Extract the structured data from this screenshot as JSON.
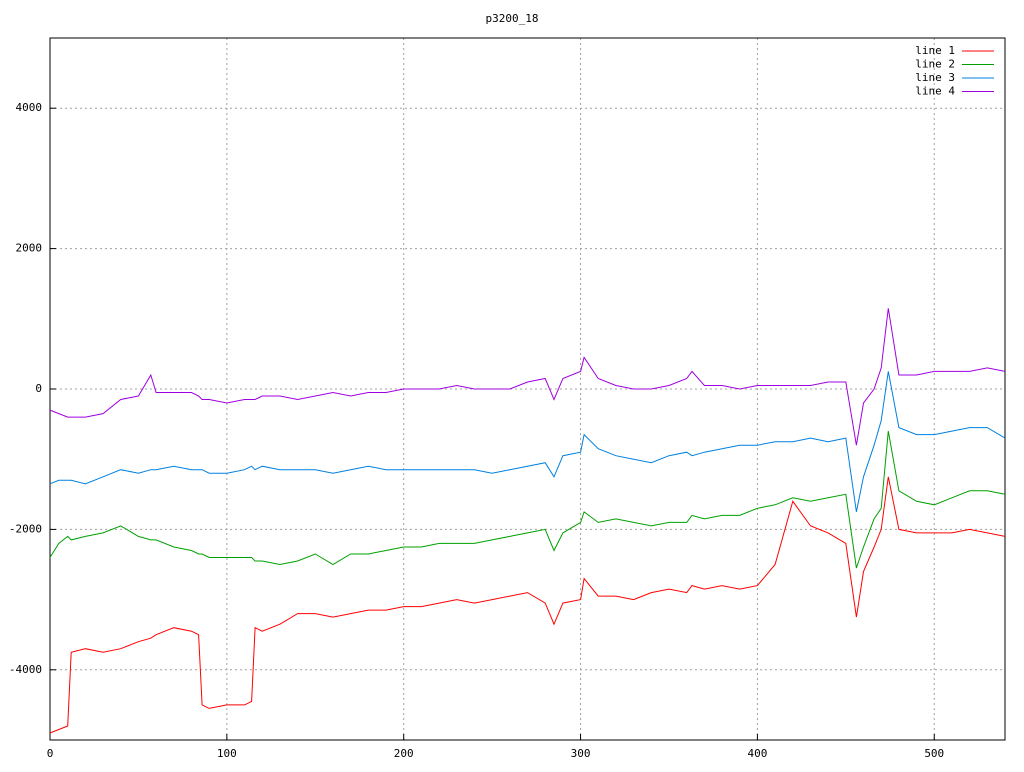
{
  "chart_data": {
    "type": "line",
    "title": "p3200_18",
    "x": [
      0,
      5,
      10,
      12,
      20,
      30,
      40,
      50,
      57,
      60,
      70,
      80,
      84,
      86,
      90,
      100,
      110,
      114,
      116,
      120,
      130,
      140,
      150,
      160,
      170,
      180,
      190,
      200,
      210,
      220,
      230,
      240,
      250,
      260,
      270,
      280,
      285,
      290,
      300,
      302,
      310,
      320,
      330,
      340,
      350,
      360,
      363,
      370,
      380,
      390,
      400,
      410,
      420,
      430,
      440,
      450,
      456,
      460,
      466,
      470,
      474,
      480,
      490,
      500,
      510,
      520,
      530,
      540
    ],
    "series": [
      {
        "name": "line 1",
        "color": "#ff0000",
        "values": [
          -4900,
          -4850,
          -4800,
          -3750,
          -3700,
          -3750,
          -3700,
          -3600,
          -3550,
          -3500,
          -3400,
          -3450,
          -3500,
          -4500,
          -4550,
          -4500,
          -4500,
          -4450,
          -3400,
          -3450,
          -3350,
          -3200,
          -3200,
          -3250,
          -3200,
          -3150,
          -3150,
          -3100,
          -3100,
          -3050,
          -3000,
          -3050,
          -3000,
          -2950,
          -2900,
          -3050,
          -3350,
          -3050,
          -3000,
          -2700,
          -2950,
          -2950,
          -3000,
          -2900,
          -2850,
          -2900,
          -2800,
          -2850,
          -2800,
          -2850,
          -2800,
          -2500,
          -1600,
          -1950,
          -2050,
          -2200,
          -3250,
          -2600,
          -2250,
          -2000,
          -1250,
          -2000,
          -2050,
          -2050,
          -2050,
          -2000,
          -2050,
          -2100
        ]
      },
      {
        "name": "line 2",
        "color": "#00a000",
        "values": [
          -2400,
          -2200,
          -2100,
          -2150,
          -2100,
          -2050,
          -1950,
          -2100,
          -2150,
          -2150,
          -2250,
          -2300,
          -2350,
          -2350,
          -2400,
          -2400,
          -2400,
          -2400,
          -2450,
          -2450,
          -2500,
          -2450,
          -2350,
          -2500,
          -2350,
          -2350,
          -2300,
          -2250,
          -2250,
          -2200,
          -2200,
          -2200,
          -2150,
          -2100,
          -2050,
          -2000,
          -2300,
          -2050,
          -1900,
          -1750,
          -1900,
          -1850,
          -1900,
          -1950,
          -1900,
          -1900,
          -1800,
          -1850,
          -1800,
          -1800,
          -1700,
          -1650,
          -1550,
          -1600,
          -1550,
          -1500,
          -2550,
          -2250,
          -1850,
          -1700,
          -600,
          -1450,
          -1600,
          -1650,
          -1550,
          -1450,
          -1450,
          -1500
        ]
      },
      {
        "name": "line 3",
        "color": "#0080e0",
        "values": [
          -1350,
          -1300,
          -1300,
          -1300,
          -1350,
          -1250,
          -1150,
          -1200,
          -1150,
          -1150,
          -1100,
          -1150,
          -1150,
          -1150,
          -1200,
          -1200,
          -1150,
          -1100,
          -1150,
          -1100,
          -1150,
          -1150,
          -1150,
          -1200,
          -1150,
          -1100,
          -1150,
          -1150,
          -1150,
          -1150,
          -1150,
          -1150,
          -1200,
          -1150,
          -1100,
          -1050,
          -1250,
          -950,
          -900,
          -650,
          -850,
          -950,
          -1000,
          -1050,
          -950,
          -900,
          -950,
          -900,
          -850,
          -800,
          -800,
          -750,
          -750,
          -700,
          -750,
          -700,
          -1750,
          -1250,
          -800,
          -450,
          250,
          -550,
          -650,
          -650,
          -600,
          -550,
          -550,
          -700
        ]
      },
      {
        "name": "line 4",
        "color": "#a000e0",
        "values": [
          -300,
          -350,
          -400,
          -400,
          -400,
          -350,
          -150,
          -100,
          200,
          -50,
          -50,
          -50,
          -100,
          -150,
          -150,
          -200,
          -150,
          -150,
          -150,
          -100,
          -100,
          -150,
          -100,
          -50,
          -100,
          -50,
          -50,
          0,
          0,
          0,
          50,
          0,
          0,
          0,
          100,
          150,
          -150,
          150,
          250,
          450,
          150,
          50,
          0,
          0,
          50,
          150,
          250,
          50,
          50,
          0,
          50,
          50,
          50,
          50,
          100,
          100,
          -800,
          -200,
          0,
          300,
          1150,
          200,
          200,
          250,
          250,
          250,
          300,
          250
        ]
      }
    ],
    "xlim": [
      0,
      540
    ],
    "xticks": [
      0,
      100,
      200,
      300,
      400,
      500
    ],
    "ylim": [
      -5000,
      5000
    ],
    "yticks": [
      -4000,
      -2000,
      0,
      2000,
      4000
    ],
    "grid": true,
    "legend": "top-right"
  }
}
